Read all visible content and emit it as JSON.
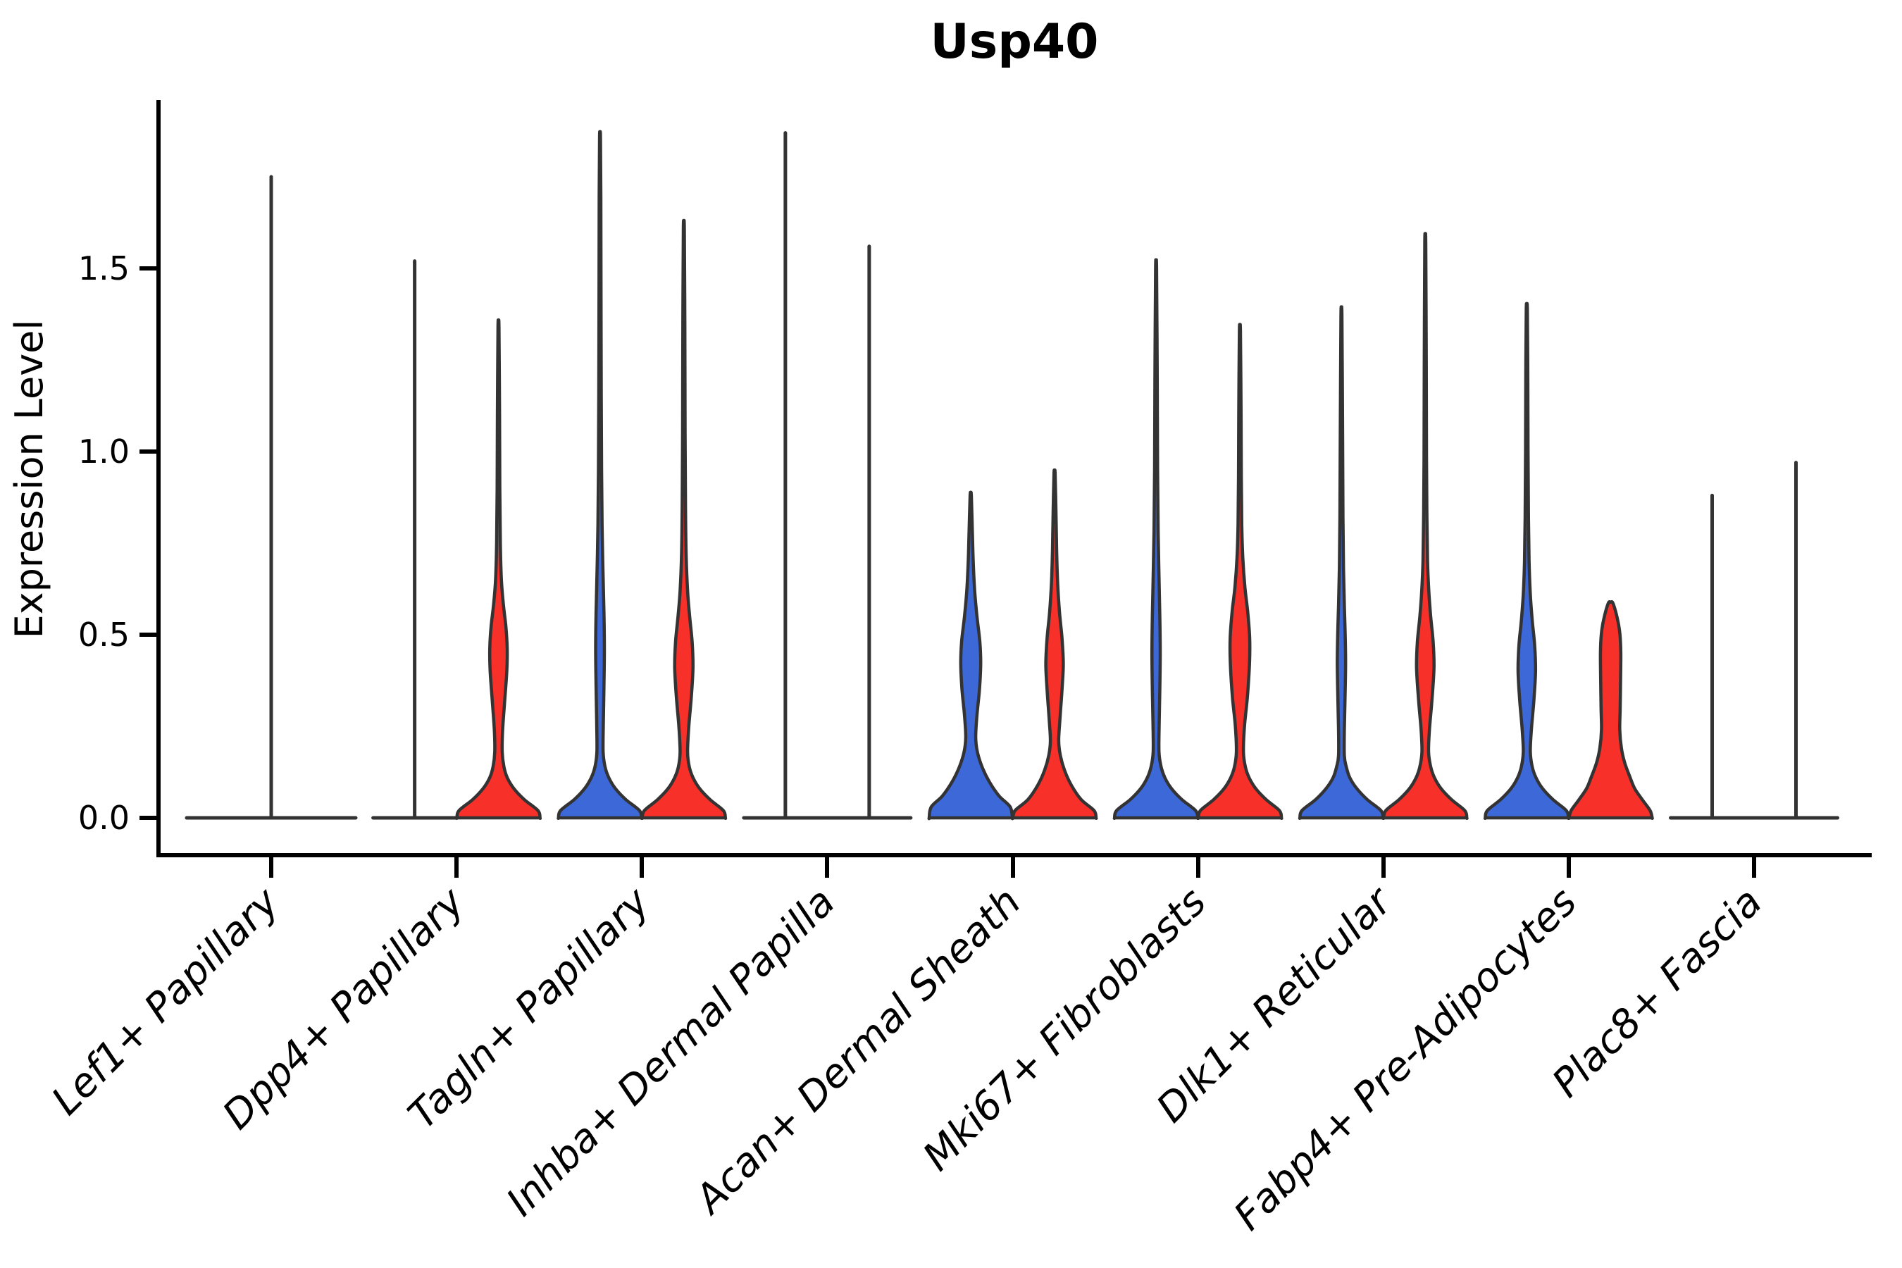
{
  "title": "Usp40",
  "colors": {
    "blue": "#3C68D8",
    "red": "#F8302A",
    "outline": "#333333",
    "axis": "#000000",
    "background": "#FFFFFF"
  },
  "chart_data": {
    "type": "violin",
    "title": "Usp40",
    "xlabel": "",
    "ylabel": "Expression Level",
    "ylim": [
      0,
      1.95
    ],
    "yticks": [
      0.0,
      0.5,
      1.0,
      1.5
    ],
    "ytick_labels": [
      "0.0",
      "0.5",
      "1.0",
      "1.5"
    ],
    "legend": "none",
    "grid": false,
    "categories": [
      "Lef1+ Papillary",
      "Dpp4+ Papillary",
      "Tagln+ Papillary",
      "Inhba+ Dermal Papilla",
      "Acan+ Dermal Sheath",
      "Mki67+ Fibroblasts",
      "Dlk1+ Reticular",
      "Fabp4+ Pre-Adipocytes",
      "Plac8+ Fascia"
    ],
    "series": [
      {
        "name": "group-blue",
        "color": "#3C68D8"
      },
      {
        "name": "group-red",
        "color": "#F8302A"
      }
    ],
    "violins": [
      {
        "category_index": 0,
        "category": "Lef1+ Papillary",
        "side": "center",
        "series": null,
        "fill": "none",
        "shape": "flat-spike",
        "max_expression": 1.75
      },
      {
        "category_index": 1,
        "category": "Dpp4+ Papillary",
        "side": "left",
        "series": "group-blue",
        "fill": "none",
        "shape": "flat-spike",
        "max_expression": 1.52
      },
      {
        "category_index": 1,
        "category": "Dpp4+ Papillary",
        "side": "right",
        "series": "group-red",
        "fill": "red",
        "shape": "kde",
        "max_expression": 1.34,
        "profile": [
          [
            0,
            1
          ],
          [
            0.02,
            0.95
          ],
          [
            0.05,
            0.62
          ],
          [
            0.08,
            0.37
          ],
          [
            0.11,
            0.21
          ],
          [
            0.14,
            0.13
          ],
          [
            0.18,
            0.09
          ],
          [
            0.24,
            0.1
          ],
          [
            0.32,
            0.15
          ],
          [
            0.4,
            0.2
          ],
          [
            0.46,
            0.21
          ],
          [
            0.52,
            0.18
          ],
          [
            0.58,
            0.12
          ],
          [
            0.65,
            0.07
          ],
          [
            0.75,
            0.045
          ],
          [
            0.9,
            0.032
          ],
          [
            1.1,
            0.026
          ],
          [
            1.34,
            0.012
          ]
        ]
      },
      {
        "category_index": 2,
        "category": "Tagln+ Papillary",
        "side": "left",
        "series": "group-blue",
        "fill": "blue",
        "shape": "kde",
        "max_expression": 1.86,
        "profile": [
          [
            0,
            1
          ],
          [
            0.02,
            0.95
          ],
          [
            0.05,
            0.62
          ],
          [
            0.08,
            0.37
          ],
          [
            0.11,
            0.21
          ],
          [
            0.14,
            0.12
          ],
          [
            0.18,
            0.075
          ],
          [
            0.26,
            0.08
          ],
          [
            0.36,
            0.095
          ],
          [
            0.46,
            0.105
          ],
          [
            0.56,
            0.095
          ],
          [
            0.68,
            0.07
          ],
          [
            0.8,
            0.05
          ],
          [
            0.95,
            0.038
          ],
          [
            1.15,
            0.03
          ],
          [
            1.45,
            0.024
          ],
          [
            1.7,
            0.02
          ],
          [
            1.86,
            0.011
          ]
        ]
      },
      {
        "category_index": 2,
        "category": "Tagln+ Papillary",
        "side": "right",
        "series": "group-red",
        "fill": "red",
        "shape": "kde",
        "max_expression": 1.61,
        "profile": [
          [
            0,
            1
          ],
          [
            0.02,
            0.95
          ],
          [
            0.05,
            0.63
          ],
          [
            0.08,
            0.38
          ],
          [
            0.11,
            0.22
          ],
          [
            0.14,
            0.13
          ],
          [
            0.18,
            0.09
          ],
          [
            0.25,
            0.12
          ],
          [
            0.33,
            0.18
          ],
          [
            0.41,
            0.22
          ],
          [
            0.48,
            0.2
          ],
          [
            0.55,
            0.14
          ],
          [
            0.62,
            0.09
          ],
          [
            0.72,
            0.055
          ],
          [
            0.85,
            0.04
          ],
          [
            1.05,
            0.03
          ],
          [
            1.35,
            0.024
          ],
          [
            1.61,
            0.012
          ]
        ]
      },
      {
        "category_index": 3,
        "category": "Inhba+ Dermal Papilla",
        "side": "left",
        "series": "group-blue",
        "fill": "none",
        "shape": "flat-spike",
        "max_expression": 1.87
      },
      {
        "category_index": 3,
        "category": "Inhba+ Dermal Papilla",
        "side": "right",
        "series": "group-red",
        "fill": "none",
        "shape": "flat-spike",
        "max_expression": 1.56
      },
      {
        "category_index": 4,
        "category": "Acan+ Dermal Sheath",
        "side": "left",
        "series": "group-blue",
        "fill": "blue",
        "shape": "kde",
        "max_expression": 0.88,
        "profile": [
          [
            0,
            1
          ],
          [
            0.03,
            0.95
          ],
          [
            0.06,
            0.68
          ],
          [
            0.1,
            0.44
          ],
          [
            0.14,
            0.27
          ],
          [
            0.18,
            0.16
          ],
          [
            0.22,
            0.12
          ],
          [
            0.28,
            0.15
          ],
          [
            0.35,
            0.21
          ],
          [
            0.42,
            0.24
          ],
          [
            0.48,
            0.22
          ],
          [
            0.55,
            0.15
          ],
          [
            0.62,
            0.095
          ],
          [
            0.7,
            0.06
          ],
          [
            0.78,
            0.04
          ],
          [
            0.88,
            0.015
          ]
        ]
      },
      {
        "category_index": 4,
        "category": "Acan+ Dermal Sheath",
        "side": "right",
        "series": "group-red",
        "fill": "red",
        "shape": "kde",
        "max_expression": 0.94,
        "profile": [
          [
            0,
            1
          ],
          [
            0.02,
            0.95
          ],
          [
            0.05,
            0.64
          ],
          [
            0.09,
            0.4
          ],
          [
            0.13,
            0.24
          ],
          [
            0.17,
            0.14
          ],
          [
            0.21,
            0.1
          ],
          [
            0.27,
            0.13
          ],
          [
            0.35,
            0.18
          ],
          [
            0.42,
            0.21
          ],
          [
            0.49,
            0.18
          ],
          [
            0.56,
            0.12
          ],
          [
            0.64,
            0.075
          ],
          [
            0.73,
            0.05
          ],
          [
            0.83,
            0.035
          ],
          [
            0.94,
            0.014
          ]
        ]
      },
      {
        "category_index": 5,
        "category": "Mki67+ Fibroblasts",
        "side": "left",
        "series": "group-blue",
        "fill": "blue",
        "shape": "kde",
        "max_expression": 1.5,
        "profile": [
          [
            0,
            1
          ],
          [
            0.02,
            0.95
          ],
          [
            0.05,
            0.62
          ],
          [
            0.08,
            0.37
          ],
          [
            0.11,
            0.21
          ],
          [
            0.14,
            0.12
          ],
          [
            0.18,
            0.07
          ],
          [
            0.26,
            0.075
          ],
          [
            0.35,
            0.09
          ],
          [
            0.45,
            0.1
          ],
          [
            0.55,
            0.09
          ],
          [
            0.66,
            0.07
          ],
          [
            0.78,
            0.05
          ],
          [
            0.95,
            0.036
          ],
          [
            1.2,
            0.028
          ],
          [
            1.5,
            0.012
          ]
        ]
      },
      {
        "category_index": 5,
        "category": "Mki67+ Fibroblasts",
        "side": "right",
        "series": "group-red",
        "fill": "red",
        "shape": "kde",
        "max_expression": 1.33,
        "profile": [
          [
            0,
            1
          ],
          [
            0.02,
            0.95
          ],
          [
            0.05,
            0.63
          ],
          [
            0.08,
            0.38
          ],
          [
            0.11,
            0.22
          ],
          [
            0.14,
            0.13
          ],
          [
            0.18,
            0.085
          ],
          [
            0.25,
            0.11
          ],
          [
            0.33,
            0.18
          ],
          [
            0.42,
            0.23
          ],
          [
            0.49,
            0.235
          ],
          [
            0.56,
            0.19
          ],
          [
            0.63,
            0.12
          ],
          [
            0.71,
            0.07
          ],
          [
            0.8,
            0.045
          ],
          [
            0.93,
            0.034
          ],
          [
            1.12,
            0.027
          ],
          [
            1.33,
            0.013
          ]
        ]
      },
      {
        "category_index": 6,
        "category": "Dlk1+ Reticular",
        "side": "left",
        "series": "group-blue",
        "fill": "blue",
        "shape": "kde",
        "max_expression": 1.37,
        "profile": [
          [
            0,
            1
          ],
          [
            0.02,
            0.95
          ],
          [
            0.05,
            0.62
          ],
          [
            0.08,
            0.37
          ],
          [
            0.11,
            0.2
          ],
          [
            0.14,
            0.115
          ],
          [
            0.17,
            0.07
          ],
          [
            0.24,
            0.07
          ],
          [
            0.32,
            0.085
          ],
          [
            0.42,
            0.1
          ],
          [
            0.5,
            0.09
          ],
          [
            0.58,
            0.07
          ],
          [
            0.68,
            0.05
          ],
          [
            0.82,
            0.037
          ],
          [
            1.05,
            0.028
          ],
          [
            1.37,
            0.012
          ]
        ]
      },
      {
        "category_index": 6,
        "category": "Dlk1+ Reticular",
        "side": "right",
        "series": "group-red",
        "fill": "red",
        "shape": "kde",
        "max_expression": 1.57,
        "profile": [
          [
            0,
            1
          ],
          [
            0.02,
            0.95
          ],
          [
            0.05,
            0.63
          ],
          [
            0.08,
            0.38
          ],
          [
            0.11,
            0.22
          ],
          [
            0.14,
            0.13
          ],
          [
            0.18,
            0.08
          ],
          [
            0.24,
            0.1
          ],
          [
            0.32,
            0.16
          ],
          [
            0.41,
            0.21
          ],
          [
            0.48,
            0.19
          ],
          [
            0.55,
            0.13
          ],
          [
            0.62,
            0.085
          ],
          [
            0.7,
            0.055
          ],
          [
            0.82,
            0.04
          ],
          [
            0.98,
            0.03
          ],
          [
            1.25,
            0.024
          ],
          [
            1.57,
            0.012
          ]
        ]
      },
      {
        "category_index": 7,
        "category": "Fabp4+ Pre-Adipocytes",
        "side": "left",
        "series": "group-blue",
        "fill": "blue",
        "shape": "kde",
        "max_expression": 1.39,
        "profile": [
          [
            0,
            1
          ],
          [
            0.02,
            0.95
          ],
          [
            0.05,
            0.63
          ],
          [
            0.08,
            0.38
          ],
          [
            0.11,
            0.22
          ],
          [
            0.14,
            0.13
          ],
          [
            0.18,
            0.085
          ],
          [
            0.24,
            0.11
          ],
          [
            0.32,
            0.17
          ],
          [
            0.4,
            0.21
          ],
          [
            0.47,
            0.19
          ],
          [
            0.54,
            0.13
          ],
          [
            0.61,
            0.085
          ],
          [
            0.7,
            0.055
          ],
          [
            0.82,
            0.04
          ],
          [
            1.0,
            0.03
          ],
          [
            1.22,
            0.024
          ],
          [
            1.39,
            0.013
          ]
        ]
      },
      {
        "category_index": 7,
        "category": "Fabp4+ Pre-Adipocytes",
        "side": "right",
        "series": "group-red",
        "fill": "red",
        "shape": "kde",
        "max_expression": 0.585,
        "profile": [
          [
            0,
            1
          ],
          [
            0.02,
            0.95
          ],
          [
            0.05,
            0.76
          ],
          [
            0.08,
            0.58
          ],
          [
            0.11,
            0.47
          ],
          [
            0.15,
            0.34
          ],
          [
            0.19,
            0.26
          ],
          [
            0.24,
            0.22
          ],
          [
            0.3,
            0.23
          ],
          [
            0.38,
            0.24
          ],
          [
            0.45,
            0.245
          ],
          [
            0.5,
            0.225
          ],
          [
            0.54,
            0.17
          ],
          [
            0.585,
            0.06
          ]
        ]
      },
      {
        "category_index": 8,
        "category": "Plac8+ Fascia",
        "side": "left",
        "series": "group-blue",
        "fill": "none",
        "shape": "flat-spike",
        "max_expression": 0.88
      },
      {
        "category_index": 8,
        "category": "Plac8+ Fascia",
        "side": "right",
        "series": "group-red",
        "fill": "none",
        "shape": "flat-spike",
        "max_expression": 0.97
      }
    ]
  }
}
